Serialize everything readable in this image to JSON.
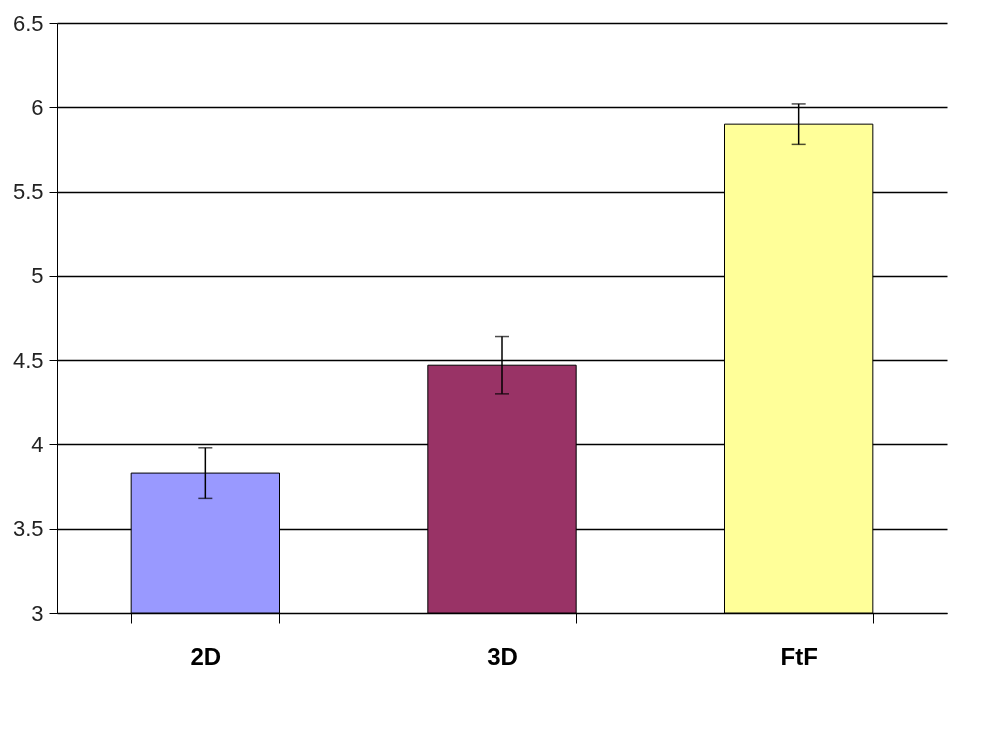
{
  "chart_data": {
    "type": "bar",
    "categories": [
      "2D",
      "3D",
      "FtF"
    ],
    "values": [
      3.83,
      4.47,
      5.9
    ],
    "colors": [
      "#9999ff",
      "#993366",
      "#ffff99"
    ],
    "errors": [
      0.15,
      0.17,
      0.12
    ],
    "ylim": [
      3,
      6.5
    ],
    "yticks": [
      3,
      3.5,
      4,
      4.5,
      5,
      5.5,
      6,
      6.5
    ],
    "grid": "y"
  }
}
